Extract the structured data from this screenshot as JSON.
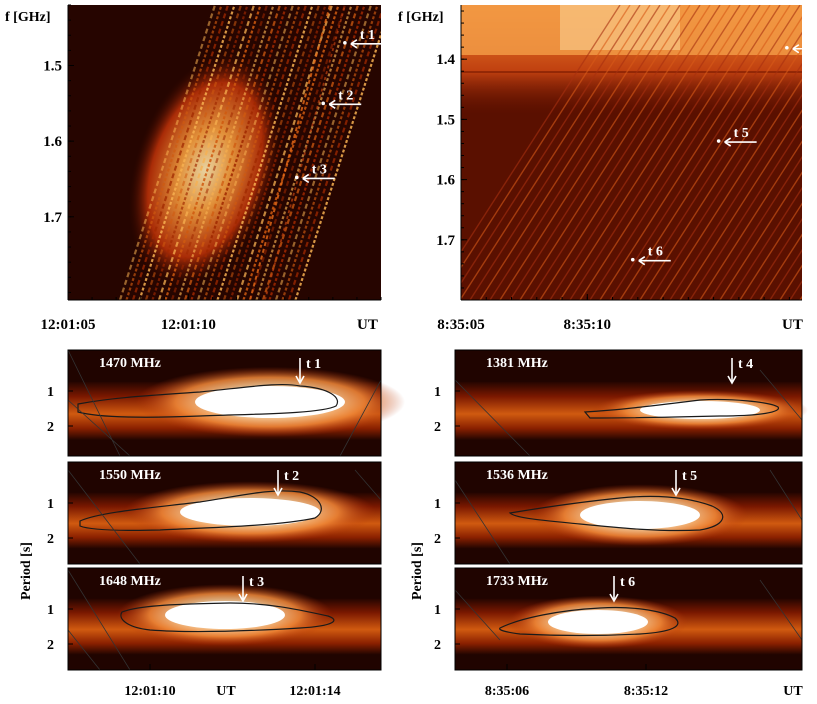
{
  "colors": {
    "background": "#ffffff",
    "map_dark": "#200400",
    "map_mid": "#8c1e00",
    "map_bright": "#e45a08",
    "map_peak": "#fde4a8",
    "marker": "#ffffff",
    "contour": "#1a1a1a"
  },
  "chart_data": [
    {
      "id": "spectrum_left",
      "type": "heatmap",
      "ylabel": "f [GHz]",
      "xlabel": "UT",
      "y_range": [
        1.42,
        1.81
      ],
      "y_inverted": true,
      "y_ticks": [
        "1.5",
        "1.6",
        "1.7"
      ],
      "y_tick_values": [
        1.5,
        1.6,
        1.7
      ],
      "x_ticks": [
        "12:01:05",
        "12:01:10"
      ],
      "x_tick_values": [
        0,
        5
      ],
      "x_range_s": [
        0,
        13
      ],
      "markers": [
        {
          "label": "t 1",
          "t_s": 11.5,
          "f": 1.47
        },
        {
          "label": "t 2",
          "t_s": 10.6,
          "f": 1.55
        },
        {
          "label": "t 3",
          "t_s": 9.5,
          "f": 1.648
        }
      ]
    },
    {
      "id": "spectrum_right",
      "type": "heatmap",
      "ylabel": "f [GHz]",
      "xlabel": "UT",
      "y_range": [
        1.31,
        1.8
      ],
      "y_inverted": true,
      "y_ticks": [
        "1.4",
        "1.5",
        "1.6",
        "1.7"
      ],
      "y_tick_values": [
        1.4,
        1.5,
        1.6,
        1.7
      ],
      "x_ticks": [
        "8:35:05",
        "8:35:10"
      ],
      "x_tick_values": [
        0,
        5
      ],
      "x_range_s": [
        0,
        13.5
      ],
      "markers": [
        {
          "label": "t 4",
          "t_s": 12.9,
          "f": 1.381
        },
        {
          "label": "t 5",
          "t_s": 10.2,
          "f": 1.536
        },
        {
          "label": "t 6",
          "t_s": 6.8,
          "f": 1.733
        }
      ]
    },
    {
      "id": "wavelet_1470",
      "type": "heatmap",
      "label": "1470 MHz",
      "ylabel": "Period [s]",
      "y_ticks": [
        "1",
        "2"
      ],
      "marker": "t 1"
    },
    {
      "id": "wavelet_1550",
      "type": "heatmap",
      "label": "1550 MHz",
      "ylabel": "Period [s]",
      "y_ticks": [
        "1",
        "2"
      ],
      "marker": "t 2"
    },
    {
      "id": "wavelet_1648",
      "type": "heatmap",
      "label": "1648 MHz",
      "ylabel": "Period [s]",
      "y_ticks": [
        "1",
        "2"
      ],
      "marker": "t 3",
      "x_ticks": [
        "12:01:10",
        "UT",
        "12:01:14"
      ]
    },
    {
      "id": "wavelet_1381",
      "type": "heatmap",
      "label": "1381 MHz",
      "ylabel": "Period [s]",
      "y_ticks": [
        "1",
        "2"
      ],
      "marker": "t 4"
    },
    {
      "id": "wavelet_1536",
      "type": "heatmap",
      "label": "1536 MHz",
      "ylabel": "Period [s]",
      "y_ticks": [
        "1",
        "2"
      ],
      "marker": "t 5"
    },
    {
      "id": "wavelet_1733",
      "type": "heatmap",
      "label": "1733 MHz",
      "ylabel": "Period [s]",
      "y_ticks": [
        "1",
        "2"
      ],
      "marker": "t 6",
      "x_ticks": [
        "8:35:06",
        "8:35:12",
        "UT"
      ]
    }
  ],
  "labels": {
    "period_axis": "Period [s]",
    "ut": "UT"
  }
}
